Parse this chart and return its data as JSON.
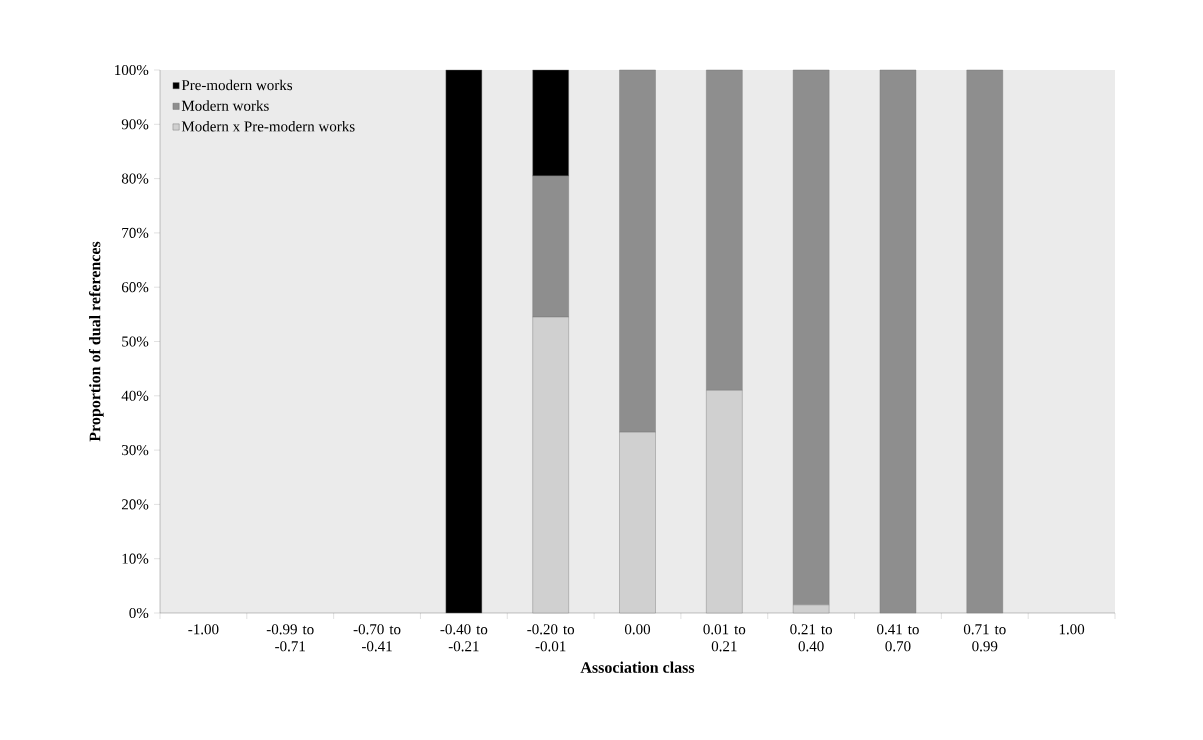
{
  "chart_data": {
    "type": "bar",
    "stacked": true,
    "xlabel": "Association class",
    "ylabel": "Proportion of dual references",
    "categories": [
      "-1.00",
      "-0.99 to -0.71",
      "-0.70 to -0.41",
      "-0.40 to -0.21",
      "-0.20 to -0.01",
      "0.00",
      "0.01 to 0.21",
      "0.21 to 0.40",
      "0.41 to 0.70",
      "0.71 to 0.99",
      "1.00"
    ],
    "series": [
      {
        "name": "Modern x Pre-modern works",
        "color": "#d0d0d0",
        "values": [
          0,
          0,
          0,
          0,
          54.5,
          33.3,
          41,
          1.5,
          0,
          0,
          0
        ]
      },
      {
        "name": "Modern works",
        "color": "#8e8e8e",
        "values": [
          0,
          0,
          0,
          0,
          26,
          66.7,
          59,
          98.5,
          100,
          100,
          0
        ]
      },
      {
        "name": "Pre-modern works",
        "color": "#000000",
        "values": [
          0,
          0,
          0,
          100,
          19.5,
          0,
          0,
          0,
          0,
          0,
          0
        ]
      }
    ],
    "ylim": [
      0,
      100
    ],
    "yticks": [
      {
        "value": 0,
        "label": "0%"
      },
      {
        "value": 10,
        "label": "10%"
      },
      {
        "value": 20,
        "label": "20%"
      },
      {
        "value": 30,
        "label": "30%"
      },
      {
        "value": 40,
        "label": "40%"
      },
      {
        "value": 50,
        "label": "50%"
      },
      {
        "value": 60,
        "label": "60%"
      },
      {
        "value": 70,
        "label": "70%"
      },
      {
        "value": 80,
        "label": "80%"
      },
      {
        "value": 90,
        "label": "90%"
      },
      {
        "value": 100,
        "label": "100%"
      }
    ],
    "legend": "top left",
    "grid": false
  }
}
